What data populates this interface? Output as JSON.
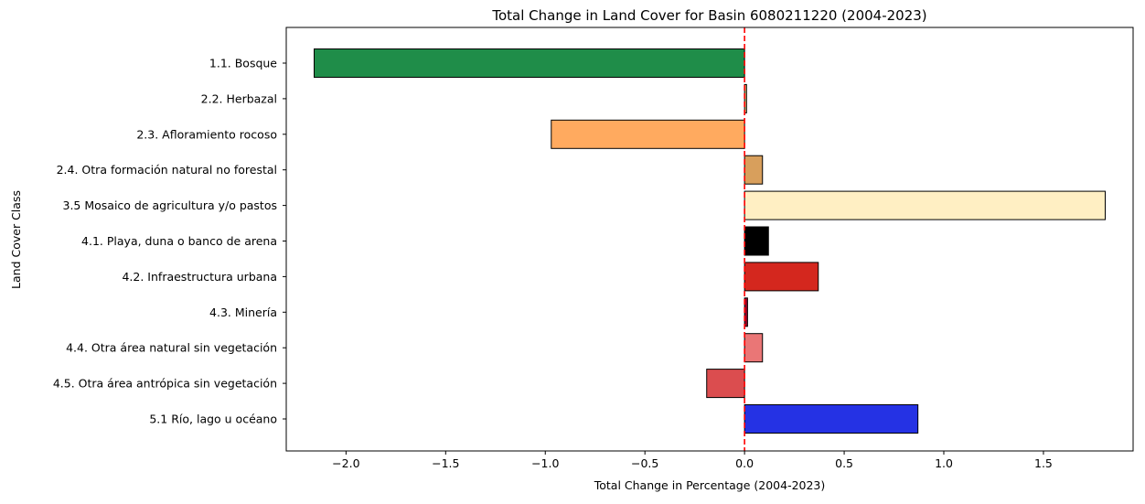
{
  "chart_data": {
    "type": "bar",
    "orientation": "horizontal",
    "title": "Total Change in Land Cover for Basin 6080211220 (2004-2023)",
    "xlabel": "Total Change in Percentage (2004-2023)",
    "ylabel": "Land Cover Class",
    "xlim": [
      -2.3,
      1.95
    ],
    "xticks": [
      -2.0,
      -1.5,
      -1.0,
      -0.5,
      0.0,
      0.5,
      1.0,
      1.5
    ],
    "xtick_labels": [
      "−2.0",
      "−1.5",
      "−1.0",
      "−0.5",
      "0.0",
      "0.5",
      "1.0",
      "1.5"
    ],
    "grid": false,
    "reference_line": {
      "x": 0,
      "color": "#ff0000",
      "style": "dashed"
    },
    "categories": [
      "1.1. Bosque",
      "2.2. Herbazal",
      "2.3. Afloramiento rocoso",
      "2.4. Otra formación natural no forestal",
      "3.5 Mosaico de agricultura y/o pastos",
      "4.1. Playa, duna o banco de arena",
      "4.2. Infraestructura urbana",
      "4.3. Minería",
      "4.4. Otra área natural sin vegetación",
      "4.5. Otra área antrópica sin vegetación",
      "5.1 Río, lago u océano"
    ],
    "values": [
      -2.16,
      0.01,
      -0.97,
      0.09,
      1.81,
      0.12,
      0.37,
      0.015,
      0.09,
      -0.19,
      0.87
    ],
    "colors": [
      "#1f8d49",
      "#d6bc74",
      "#ffaa5f",
      "#d89f5c",
      "#ffefc3",
      "#000000",
      "#d4271e",
      "#9c0027",
      "#ea7676",
      "#db4d4f",
      "#2532e4"
    ]
  }
}
